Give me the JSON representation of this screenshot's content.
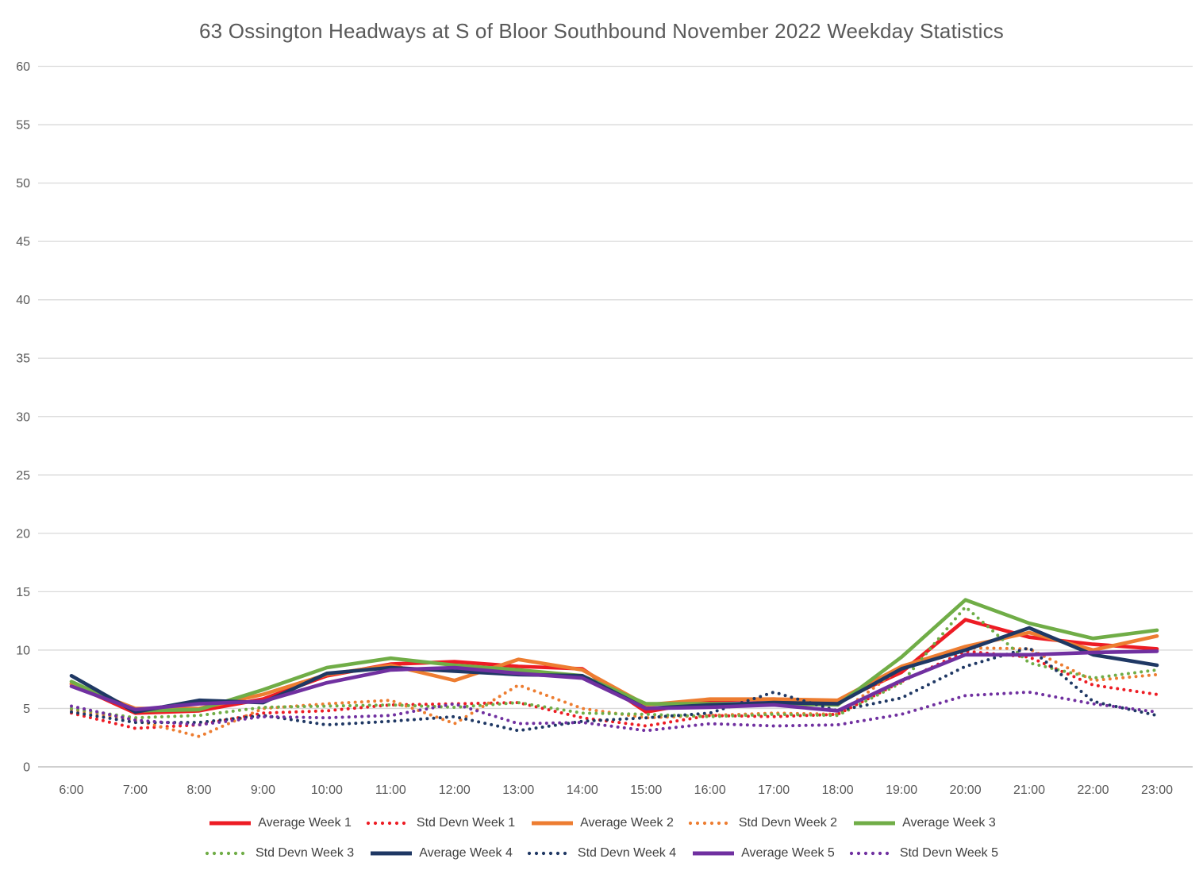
{
  "chart_data": {
    "type": "line",
    "title": "63 Ossington Headways at S of Bloor Southbound November 2022 Weekday Statistics",
    "xlabel": "",
    "ylabel": "",
    "ylim": [
      0,
      60
    ],
    "y_ticks": [
      0,
      5,
      10,
      15,
      20,
      25,
      30,
      35,
      40,
      45,
      50,
      55,
      60
    ],
    "grid": "horizontal",
    "legend_position": "bottom",
    "x_labels": [
      "6:00",
      "7:00",
      "8:00",
      "9:00",
      "10:00",
      "11:00",
      "12:00",
      "13:00",
      "14:00",
      "15:00",
      "16:00",
      "17:00",
      "18:00",
      "19:00",
      "20:00",
      "21:00",
      "22:00",
      "23:00"
    ],
    "series": [
      {
        "name": "Average Week 1",
        "color": "#ed1c24",
        "line_style": "solid",
        "values": [
          7.1,
          4.6,
          4.8,
          5.8,
          7.8,
          8.8,
          9.0,
          8.6,
          8.4,
          4.7,
          5.7,
          5.8,
          5.6,
          8.1,
          12.6,
          11.1,
          10.5,
          10.1
        ]
      },
      {
        "name": "Std Devn Week 1",
        "color": "#ed1c24",
        "line_style": "dotted",
        "values": [
          4.6,
          3.3,
          3.6,
          4.6,
          4.8,
          5.3,
          5.4,
          5.5,
          4.2,
          3.5,
          4.4,
          4.3,
          4.5,
          7.3,
          9.9,
          9.4,
          7.0,
          6.2
        ]
      },
      {
        "name": "Average Week 2",
        "color": "#ed7d31",
        "line_style": "solid",
        "values": [
          7.1,
          5.0,
          5.0,
          6.2,
          7.9,
          8.7,
          7.4,
          9.2,
          8.3,
          5.3,
          5.8,
          5.8,
          5.7,
          8.6,
          10.3,
          11.5,
          10.0,
          11.2
        ]
      },
      {
        "name": "Std Devn Week 2",
        "color": "#ed7d31",
        "line_style": "dotted",
        "values": [
          4.9,
          4.0,
          2.6,
          5.0,
          5.4,
          5.7,
          3.7,
          7.0,
          5.0,
          4.2,
          4.4,
          4.6,
          4.5,
          8.5,
          10.2,
          10.1,
          7.4,
          7.9
        ]
      },
      {
        "name": "Average Week 3",
        "color": "#70ad47",
        "line_style": "solid",
        "values": [
          7.3,
          4.8,
          4.9,
          6.6,
          8.5,
          9.3,
          8.7,
          8.3,
          7.8,
          5.4,
          5.4,
          5.4,
          5.3,
          9.4,
          14.3,
          12.3,
          11.0,
          11.7
        ]
      },
      {
        "name": "Std Devn Week 3",
        "color": "#70ad47",
        "line_style": "dotted",
        "values": [
          5.0,
          4.2,
          4.4,
          5.1,
          5.2,
          5.3,
          5.1,
          5.5,
          4.6,
          4.5,
          4.3,
          4.5,
          4.4,
          7.2,
          13.7,
          8.9,
          7.6,
          8.3
        ]
      },
      {
        "name": "Average Week 4",
        "color": "#1f3864",
        "line_style": "solid",
        "values": [
          7.8,
          4.7,
          5.7,
          5.5,
          8.0,
          8.5,
          8.2,
          7.9,
          7.8,
          5.0,
          5.3,
          5.5,
          5.4,
          8.4,
          10.0,
          11.9,
          9.6,
          8.7
        ]
      },
      {
        "name": "Std Devn Week 4",
        "color": "#1f3864",
        "line_style": "dotted",
        "values": [
          4.7,
          3.8,
          3.8,
          4.4,
          3.6,
          3.9,
          4.3,
          3.1,
          3.9,
          4.2,
          4.6,
          6.4,
          4.8,
          5.9,
          8.6,
          10.2,
          5.6,
          4.4
        ]
      },
      {
        "name": "Average Week 5",
        "color": "#7030a0",
        "line_style": "solid",
        "values": [
          6.9,
          4.9,
          5.4,
          5.6,
          7.2,
          8.3,
          8.5,
          8.0,
          7.6,
          5.0,
          5.1,
          5.3,
          4.8,
          7.4,
          9.6,
          9.6,
          9.8,
          9.9
        ]
      },
      {
        "name": "Std Devn Week 5",
        "color": "#7030a0",
        "line_style": "dotted",
        "values": [
          5.2,
          4.0,
          3.6,
          4.3,
          4.2,
          4.4,
          5.4,
          3.7,
          3.8,
          3.1,
          3.7,
          3.5,
          3.6,
          4.5,
          6.1,
          6.4,
          5.4,
          4.7
        ]
      }
    ]
  },
  "style": {
    "gridline_color": "#d9d9d9",
    "axis_line_color": "#bfbfbf",
    "tick_label_color": "#595959",
    "title_color": "#595959",
    "legend_text_color": "#404040",
    "background": "#ffffff"
  }
}
